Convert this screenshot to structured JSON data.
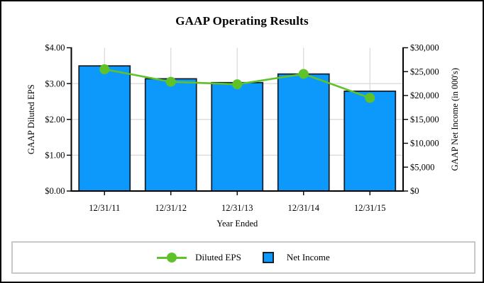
{
  "chart_data": {
    "type": "bar",
    "subtype": "combo-bar-line",
    "title": "GAAP Operating Results",
    "xlabel": "Year Ended",
    "ylabel_left": "GAAP Diluted EPS",
    "ylabel_right": "GAAP Net Income (in 000's)",
    "categories": [
      "12/31/11",
      "12/31/12",
      "12/31/13",
      "12/31/14",
      "12/31/15"
    ],
    "series": [
      {
        "name": "Diluted EPS",
        "type": "line",
        "axis": "left",
        "values": [
          3.4,
          3.05,
          2.98,
          3.27,
          2.6
        ],
        "color": "#5fc228"
      },
      {
        "name": "Net Income",
        "type": "bar",
        "axis": "right",
        "values": [
          26200,
          23500,
          22700,
          24500,
          20900
        ],
        "color": "#0d99fc",
        "border_color": "#14222e"
      }
    ],
    "left_axis": {
      "min": 0,
      "max": 4,
      "step": 1,
      "tick_labels": [
        "$0.00",
        "$1.00",
        "$2.00",
        "$3.00",
        "$4.00"
      ]
    },
    "right_axis": {
      "min": 0,
      "max": 30000,
      "step": 5000,
      "tick_labels": [
        "$0",
        "$5,000",
        "$10,000",
        "$15,000",
        "$20,000",
        "$25,000",
        "$30,000"
      ]
    },
    "grid": true,
    "legend_position": "bottom",
    "colors": {
      "grid": "#d9d9d9",
      "axis": "#000000",
      "text": "#000000",
      "legend_border": "#c8c8c8",
      "background": "#ffffff"
    }
  }
}
